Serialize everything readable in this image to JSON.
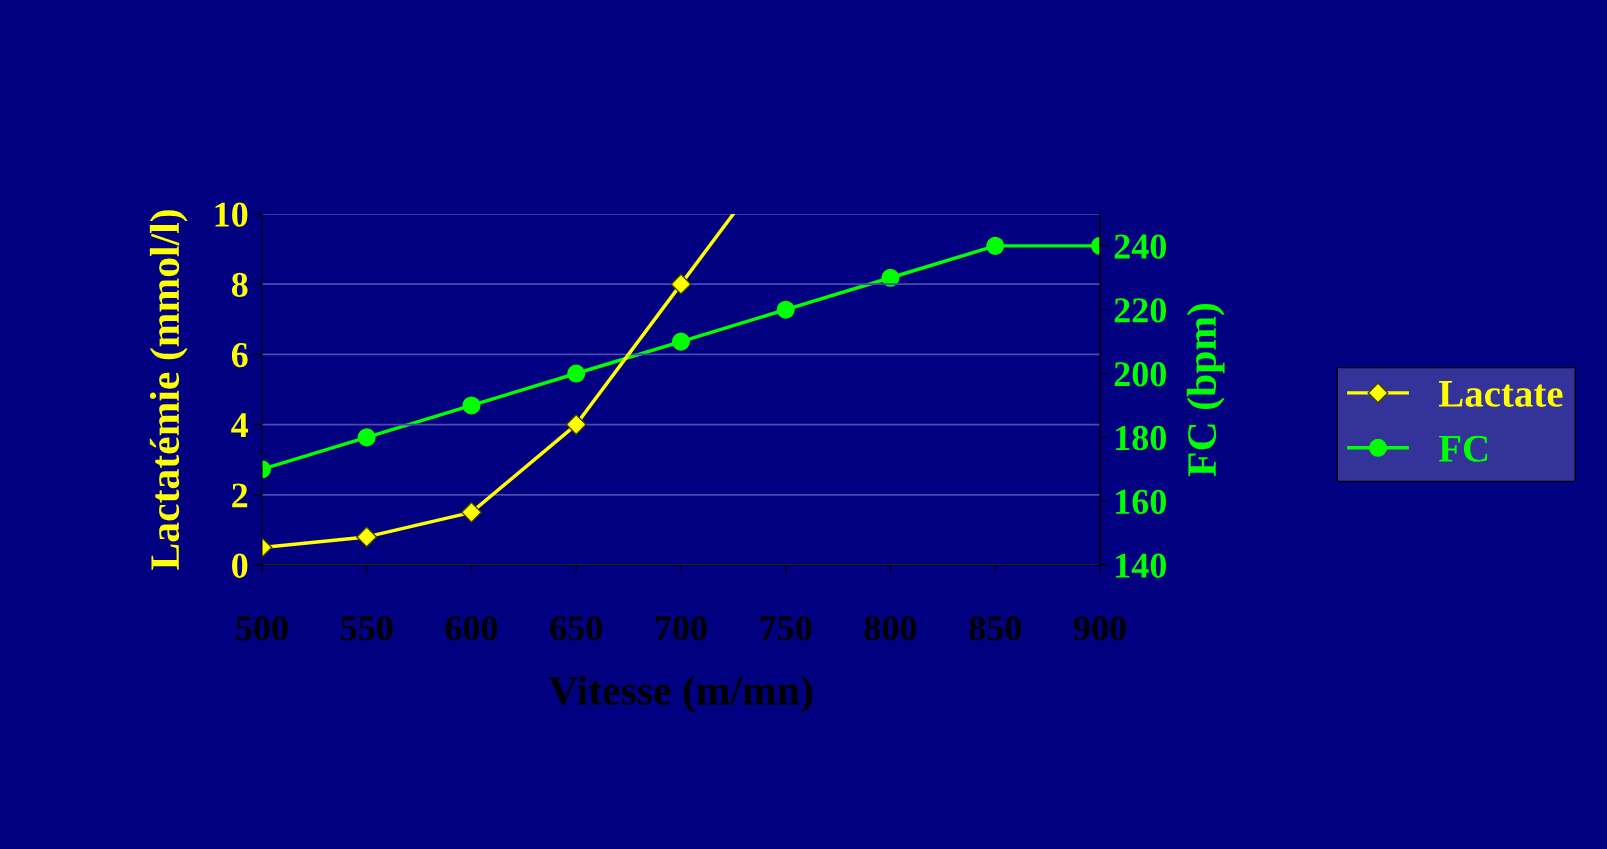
{
  "chart_data": {
    "type": "line",
    "xlabel": "Vitesse (m/mn)",
    "ylabel": "Lactatémie (mmol/l)",
    "y2label": "FC (bpm)",
    "x": [
      500,
      550,
      600,
      650,
      700,
      750,
      800,
      850,
      900
    ],
    "series": [
      {
        "name": "Lactate",
        "color": "#ffff00",
        "marker": "diamond",
        "x": [
          500,
          550,
          600,
          650,
          700,
          725
        ],
        "values": [
          0.5,
          0.8,
          1.5,
          4,
          8,
          10
        ]
      },
      {
        "name": "FC",
        "color": "#00ff00",
        "marker": "circle",
        "axis": "y2",
        "values": [
          170,
          180,
          190,
          200,
          210,
          220,
          230,
          240,
          240
        ]
      }
    ],
    "xlim": [
      500,
      900
    ],
    "xticks": [
      500,
      550,
      600,
      650,
      700,
      750,
      800,
      850,
      900
    ],
    "ylim": [
      0,
      10
    ],
    "yticks": [
      0,
      2,
      4,
      6,
      8,
      10
    ],
    "y2lim": [
      140,
      250
    ],
    "y2ticks": [
      140,
      160,
      180,
      200,
      220,
      240
    ],
    "grid": "y",
    "legend": "right"
  }
}
